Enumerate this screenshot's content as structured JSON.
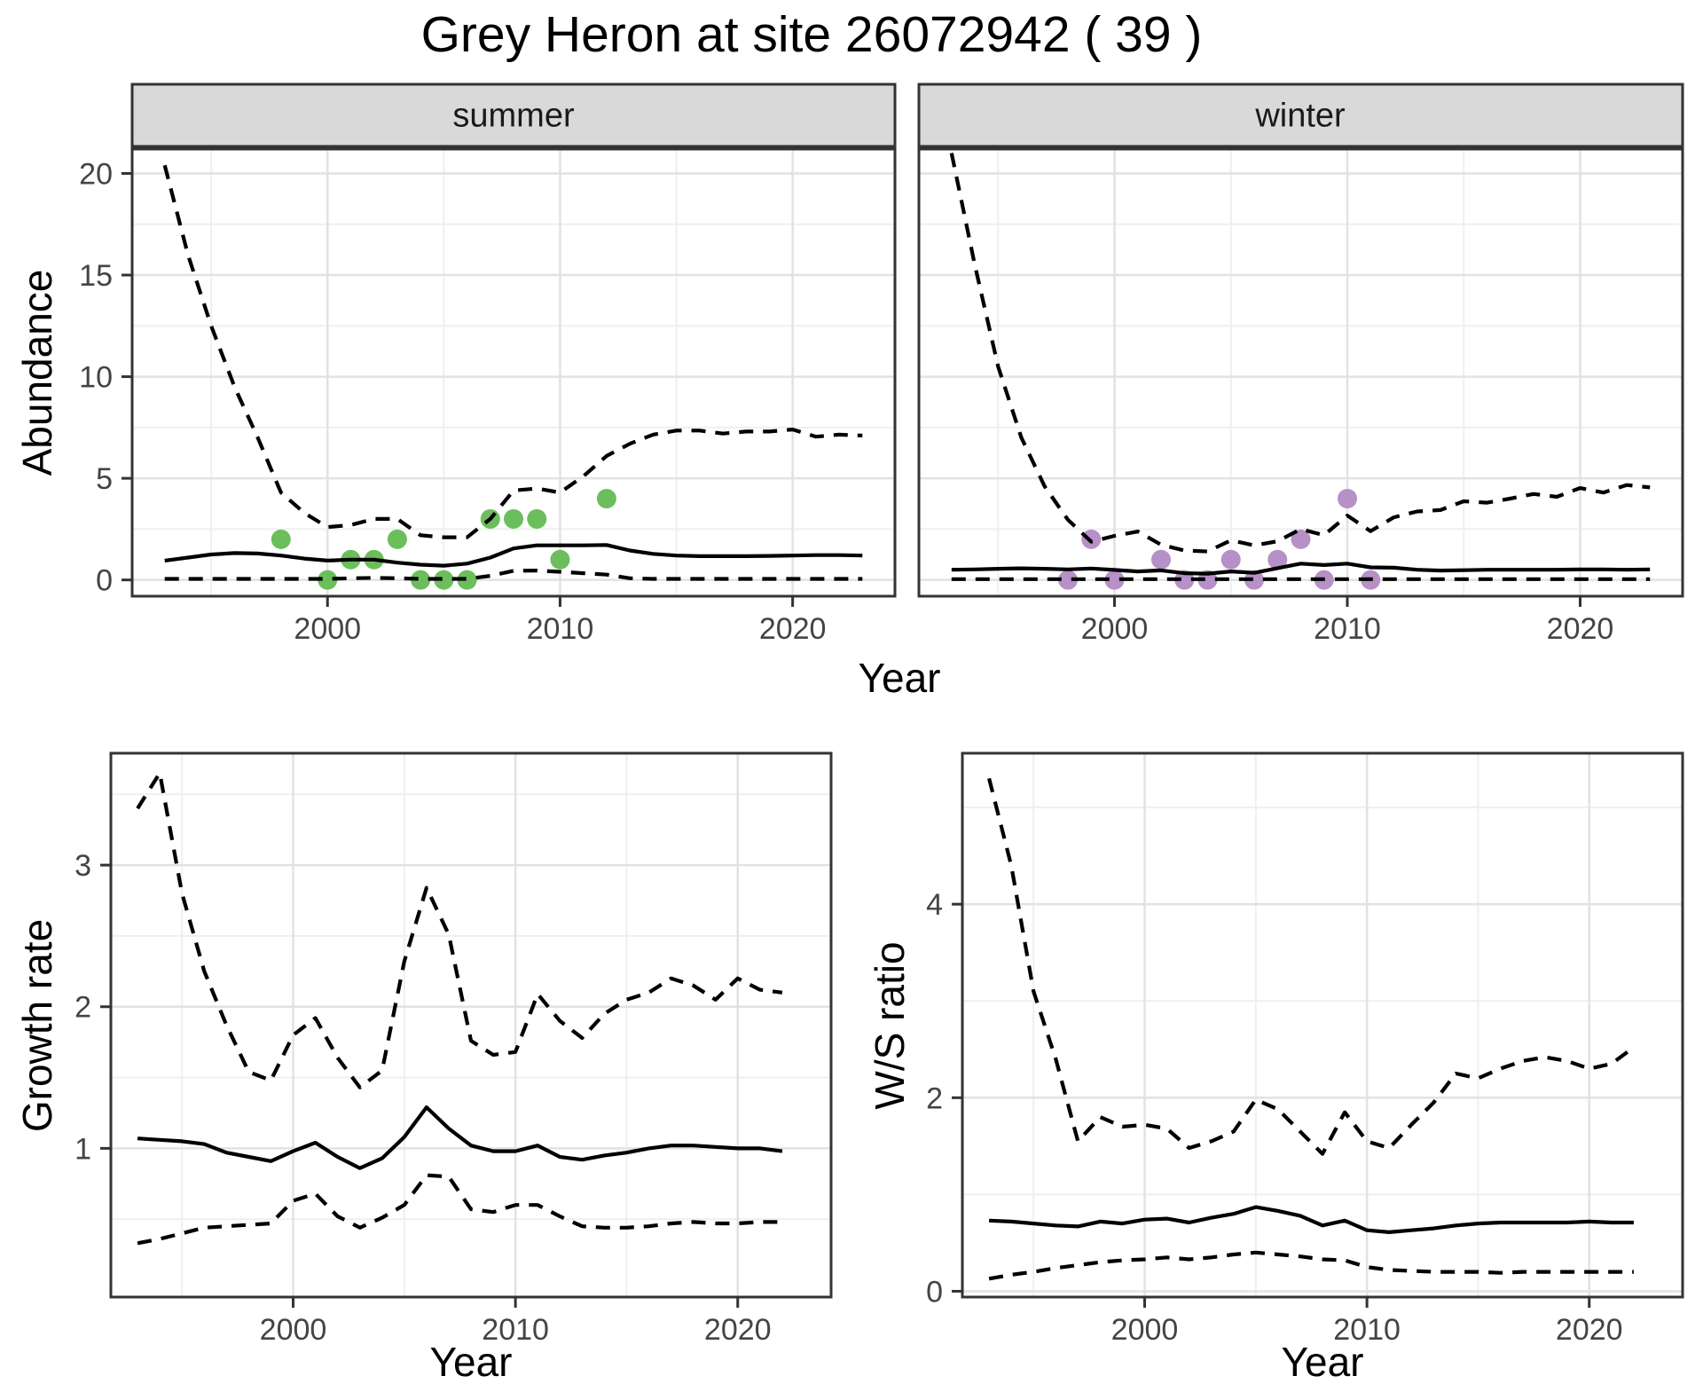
{
  "title": "Grey Heron at site 26072942 ( 39 )",
  "colors": {
    "summer_points": "#6BBE5B",
    "winter_points": "#B690C6",
    "fit_line": "#000000",
    "ci_line": "#000000",
    "strip_bg": "#D9D9D9",
    "panel_border": "#333333",
    "grid_major": "#E2E2E2",
    "grid_minor": "#EFEFEF",
    "tick_label": "#444444"
  },
  "chart_data": [
    {
      "id": "abundance",
      "type": "line",
      "xlabel": "Year",
      "ylabel": "Abundance",
      "xticks": [
        2000,
        2010,
        2020
      ],
      "xticks_minor": [
        1995,
        2005,
        2015
      ],
      "yticks": [
        0,
        5,
        10,
        15,
        20
      ],
      "yticks_minor": [
        2.5,
        7.5,
        12.5,
        17.5
      ],
      "xlim": [
        1991.6,
        2024.4
      ],
      "ylim": [
        -0.8,
        21.2
      ],
      "years": [
        1993,
        1994,
        1995,
        1996,
        1997,
        1998,
        1999,
        2000,
        2001,
        2002,
        2003,
        2004,
        2005,
        2006,
        2007,
        2008,
        2009,
        2010,
        2011,
        2012,
        2013,
        2014,
        2015,
        2016,
        2017,
        2018,
        2019,
        2020,
        2021,
        2022,
        2023
      ],
      "facets": [
        {
          "label": "summer",
          "point_color": "#6BBE5B",
          "observations": {
            "years": [
              1998,
              2000,
              2001,
              2002,
              2003,
              2004,
              2005,
              2006,
              2007,
              2008,
              2009,
              2010,
              2012
            ],
            "counts": [
              2,
              0,
              1,
              1,
              2,
              0,
              0,
              0,
              3,
              3,
              3,
              1,
              4
            ]
          },
          "series": [
            {
              "name": "fit",
              "style": "solid",
              "values": [
                0.95,
                1.1,
                1.25,
                1.32,
                1.3,
                1.2,
                1.05,
                0.95,
                1.0,
                1.0,
                0.85,
                0.75,
                0.7,
                0.8,
                1.1,
                1.55,
                1.7,
                1.7,
                1.7,
                1.72,
                1.45,
                1.28,
                1.2,
                1.17,
                1.17,
                1.17,
                1.18,
                1.2,
                1.22,
                1.22,
                1.2
              ]
            },
            {
              "name": "upper_ci",
              "style": "dashed",
              "values": [
                20.4,
                16.0,
                12.5,
                9.5,
                7.0,
                4.3,
                3.3,
                2.6,
                2.7,
                3.0,
                3.0,
                2.2,
                2.1,
                2.1,
                3.0,
                4.4,
                4.5,
                4.3,
                5.1,
                6.1,
                6.7,
                7.15,
                7.35,
                7.35,
                7.2,
                7.3,
                7.3,
                7.4,
                7.05,
                7.15,
                7.1
              ]
            },
            {
              "name": "lower_ci",
              "style": "dashed",
              "values": [
                0.05,
                0.05,
                0.05,
                0.05,
                0.05,
                0.05,
                0.05,
                0.05,
                0.08,
                0.1,
                0.08,
                0.05,
                0.05,
                0.05,
                0.2,
                0.45,
                0.46,
                0.4,
                0.33,
                0.26,
                0.08,
                0.05,
                0.05,
                0.05,
                0.05,
                0.05,
                0.05,
                0.05,
                0.05,
                0.05,
                0.05
              ]
            }
          ]
        },
        {
          "label": "winter",
          "point_color": "#B690C6",
          "observations": {
            "years": [
              1998,
              1999,
              2000,
              2002,
              2003,
              2004,
              2005,
              2006,
              2007,
              2008,
              2009,
              2010,
              2011
            ],
            "counts": [
              0,
              2,
              0,
              1,
              0,
              0,
              1,
              0,
              1,
              2,
              0,
              4,
              0
            ]
          },
          "series": [
            {
              "name": "fit",
              "style": "solid",
              "values": [
                0.5,
                0.52,
                0.55,
                0.57,
                0.55,
                0.52,
                0.56,
                0.49,
                0.42,
                0.47,
                0.33,
                0.31,
                0.42,
                0.35,
                0.58,
                0.8,
                0.73,
                0.8,
                0.62,
                0.6,
                0.5,
                0.46,
                0.48,
                0.5,
                0.5,
                0.5,
                0.5,
                0.52,
                0.52,
                0.5,
                0.52
              ]
            },
            {
              "name": "upper_ci",
              "style": "dashed",
              "values": [
                21.0,
                15.5,
                10.5,
                7.0,
                4.6,
                2.96,
                1.88,
                2.17,
                2.38,
                1.73,
                1.45,
                1.4,
                1.95,
                1.7,
                1.9,
                2.5,
                2.2,
                3.17,
                2.4,
                3.08,
                3.37,
                3.44,
                3.87,
                3.8,
                4.0,
                4.23,
                4.09,
                4.52,
                4.3,
                4.67,
                4.55
              ]
            },
            {
              "name": "lower_ci",
              "style": "dashed",
              "values": [
                0.04,
                0.04,
                0.04,
                0.04,
                0.04,
                0.04,
                0.04,
                0.04,
                0.04,
                0.04,
                0.04,
                0.04,
                0.04,
                0.04,
                0.04,
                0.04,
                0.04,
                0.04,
                0.04,
                0.04,
                0.04,
                0.04,
                0.04,
                0.04,
                0.04,
                0.04,
                0.04,
                0.04,
                0.04,
                0.04,
                0.04
              ]
            }
          ]
        }
      ]
    },
    {
      "id": "growth_rate",
      "type": "line",
      "xlabel": "Year",
      "ylabel": "Growth rate",
      "xticks": [
        2000,
        2010,
        2020
      ],
      "xticks_minor": [
        1995,
        2005,
        2015
      ],
      "yticks": [
        1,
        2,
        3
      ],
      "yticks_minor": [
        0.5,
        1.5,
        2.5,
        3.5
      ],
      "xlim": [
        1991.8,
        2024.2
      ],
      "ylim": [
        -0.05,
        3.79
      ],
      "years": [
        1993,
        1994,
        1995,
        1996,
        1997,
        1998,
        1999,
        2000,
        2001,
        2002,
        2003,
        2004,
        2005,
        2006,
        2007,
        2008,
        2009,
        2010,
        2011,
        2012,
        2013,
        2014,
        2015,
        2016,
        2017,
        2018,
        2019,
        2020,
        2021,
        2022
      ],
      "series": [
        {
          "name": "fit",
          "style": "solid",
          "values": [
            1.07,
            1.06,
            1.05,
            1.03,
            0.97,
            0.94,
            0.91,
            0.98,
            1.04,
            0.94,
            0.86,
            0.93,
            1.08,
            1.29,
            1.14,
            1.02,
            0.98,
            0.98,
            1.02,
            0.94,
            0.92,
            0.95,
            0.97,
            1.0,
            1.02,
            1.02,
            1.01,
            1.0,
            1.0,
            0.98
          ]
        },
        {
          "name": "upper_ci",
          "style": "dashed",
          "values": [
            3.4,
            3.65,
            2.8,
            2.25,
            1.87,
            1.54,
            1.48,
            1.8,
            1.92,
            1.64,
            1.43,
            1.55,
            2.32,
            2.84,
            2.51,
            1.76,
            1.66,
            1.68,
            2.09,
            1.9,
            1.78,
            1.95,
            2.05,
            2.1,
            2.2,
            2.15,
            2.05,
            2.2,
            2.12,
            2.1
          ]
        },
        {
          "name": "lower_ci",
          "style": "dashed",
          "values": [
            0.33,
            0.36,
            0.4,
            0.44,
            0.45,
            0.46,
            0.47,
            0.63,
            0.68,
            0.52,
            0.44,
            0.51,
            0.6,
            0.81,
            0.8,
            0.57,
            0.55,
            0.6,
            0.6,
            0.52,
            0.45,
            0.44,
            0.44,
            0.45,
            0.47,
            0.48,
            0.47,
            0.47,
            0.48,
            0.48
          ]
        }
      ]
    },
    {
      "id": "ws_ratio",
      "type": "line",
      "xlabel": "Year",
      "ylabel": "W/S ratio",
      "xticks": [
        2000,
        2010,
        2020
      ],
      "xticks_minor": [
        1995,
        2005,
        2015
      ],
      "yticks": [
        0,
        2,
        4
      ],
      "yticks_minor": [
        1,
        3,
        5
      ],
      "xlim": [
        1991.8,
        2024.2
      ],
      "ylim": [
        -0.06,
        5.56
      ],
      "years": [
        1993,
        1994,
        1995,
        1996,
        1997,
        1998,
        1999,
        2000,
        2001,
        2002,
        2003,
        2004,
        2005,
        2006,
        2007,
        2008,
        2009,
        2010,
        2011,
        2012,
        2013,
        2014,
        2015,
        2016,
        2017,
        2018,
        2019,
        2020,
        2021,
        2022
      ],
      "series": [
        {
          "name": "fit",
          "style": "solid",
          "values": [
            0.73,
            0.72,
            0.7,
            0.68,
            0.67,
            0.72,
            0.7,
            0.74,
            0.75,
            0.71,
            0.76,
            0.8,
            0.87,
            0.83,
            0.78,
            0.68,
            0.73,
            0.63,
            0.61,
            0.63,
            0.65,
            0.68,
            0.7,
            0.71,
            0.71,
            0.71,
            0.71,
            0.72,
            0.71,
            0.71
          ]
        },
        {
          "name": "upper_ci",
          "style": "dashed",
          "values": [
            5.3,
            4.4,
            3.1,
            2.4,
            1.55,
            1.8,
            1.7,
            1.72,
            1.68,
            1.48,
            1.55,
            1.65,
            1.98,
            1.88,
            1.65,
            1.42,
            1.85,
            1.55,
            1.48,
            1.72,
            1.95,
            2.25,
            2.2,
            2.3,
            2.38,
            2.42,
            2.38,
            2.3,
            2.35,
            2.52
          ]
        },
        {
          "name": "lower_ci",
          "style": "dashed",
          "values": [
            0.13,
            0.17,
            0.2,
            0.24,
            0.27,
            0.3,
            0.32,
            0.33,
            0.35,
            0.33,
            0.35,
            0.38,
            0.4,
            0.38,
            0.36,
            0.33,
            0.32,
            0.25,
            0.22,
            0.21,
            0.2,
            0.2,
            0.2,
            0.19,
            0.2,
            0.2,
            0.2,
            0.2,
            0.2,
            0.2
          ]
        }
      ]
    }
  ]
}
